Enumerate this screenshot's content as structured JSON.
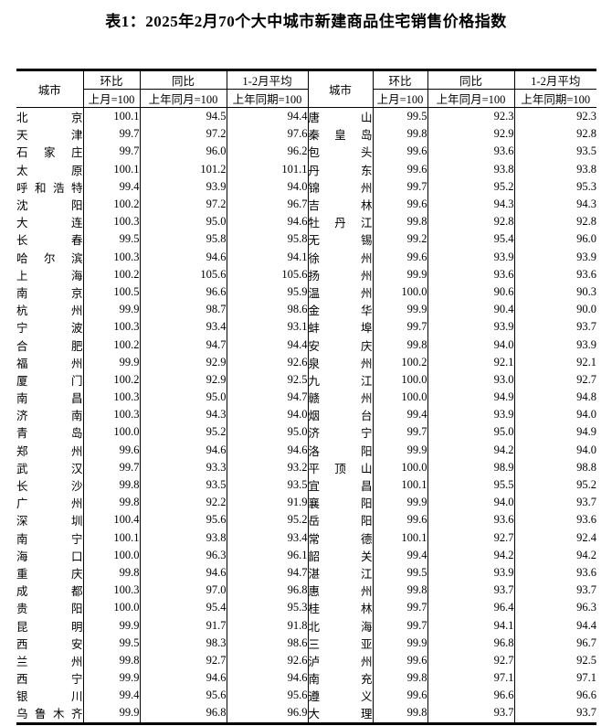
{
  "title": "表1：2025年2月70个大中城市新建商品住宅销售价格指数",
  "table": {
    "header": {
      "city": "城市",
      "mom": "环比",
      "mom_base": "上月=100",
      "yoy": "同比",
      "yoy_base": "上年同月=100",
      "avg": "1-2月平均",
      "avg_base": "上年同期=100"
    },
    "left_rows": [
      {
        "city": "北京",
        "mom": "100.1",
        "yoy": "94.5",
        "avg": "94.4"
      },
      {
        "city": "天津",
        "mom": "99.7",
        "yoy": "97.2",
        "avg": "97.6"
      },
      {
        "city": "石家庄",
        "mom": "99.7",
        "yoy": "96.0",
        "avg": "96.2"
      },
      {
        "city": "太原",
        "mom": "100.1",
        "yoy": "101.2",
        "avg": "101.1"
      },
      {
        "city": "呼和浩特",
        "mom": "99.4",
        "yoy": "93.9",
        "avg": "94.0"
      },
      {
        "city": "沈阳",
        "mom": "100.2",
        "yoy": "97.2",
        "avg": "96.7"
      },
      {
        "city": "大连",
        "mom": "100.3",
        "yoy": "95.0",
        "avg": "94.6"
      },
      {
        "city": "长春",
        "mom": "99.5",
        "yoy": "95.8",
        "avg": "95.8"
      },
      {
        "city": "哈尔滨",
        "mom": "100.3",
        "yoy": "94.6",
        "avg": "94.1"
      },
      {
        "city": "上海",
        "mom": "100.2",
        "yoy": "105.6",
        "avg": "105.6"
      },
      {
        "city": "南京",
        "mom": "100.5",
        "yoy": "96.6",
        "avg": "95.9"
      },
      {
        "city": "杭州",
        "mom": "99.9",
        "yoy": "98.7",
        "avg": "98.6"
      },
      {
        "city": "宁波",
        "mom": "100.3",
        "yoy": "93.4",
        "avg": "93.1"
      },
      {
        "city": "合肥",
        "mom": "100.2",
        "yoy": "94.7",
        "avg": "94.4"
      },
      {
        "city": "福州",
        "mom": "99.9",
        "yoy": "92.9",
        "avg": "92.6"
      },
      {
        "city": "厦门",
        "mom": "100.2",
        "yoy": "92.9",
        "avg": "92.5"
      },
      {
        "city": "南昌",
        "mom": "100.3",
        "yoy": "95.0",
        "avg": "94.7"
      },
      {
        "city": "济南",
        "mom": "100.3",
        "yoy": "94.3",
        "avg": "94.0"
      },
      {
        "city": "青岛",
        "mom": "100.0",
        "yoy": "95.2",
        "avg": "95.0"
      },
      {
        "city": "郑州",
        "mom": "99.6",
        "yoy": "94.6",
        "avg": "94.6"
      },
      {
        "city": "武汉",
        "mom": "99.7",
        "yoy": "93.3",
        "avg": "93.2"
      },
      {
        "city": "长沙",
        "mom": "99.8",
        "yoy": "93.5",
        "avg": "93.5"
      },
      {
        "city": "广州",
        "mom": "99.8",
        "yoy": "92.2",
        "avg": "91.9"
      },
      {
        "city": "深圳",
        "mom": "100.4",
        "yoy": "95.6",
        "avg": "95.2"
      },
      {
        "city": "南宁",
        "mom": "100.1",
        "yoy": "93.8",
        "avg": "93.4"
      },
      {
        "city": "海口",
        "mom": "100.0",
        "yoy": "96.3",
        "avg": "96.1"
      },
      {
        "city": "重庆",
        "mom": "99.8",
        "yoy": "94.6",
        "avg": "94.7"
      },
      {
        "city": "成都",
        "mom": "100.3",
        "yoy": "97.0",
        "avg": "96.8"
      },
      {
        "city": "贵阳",
        "mom": "100.0",
        "yoy": "95.4",
        "avg": "95.3"
      },
      {
        "city": "昆明",
        "mom": "99.9",
        "yoy": "91.7",
        "avg": "91.8"
      },
      {
        "city": "西安",
        "mom": "99.5",
        "yoy": "98.3",
        "avg": "98.6"
      },
      {
        "city": "兰州",
        "mom": "99.8",
        "yoy": "92.7",
        "avg": "92.6"
      },
      {
        "city": "西宁",
        "mom": "99.9",
        "yoy": "94.6",
        "avg": "94.6"
      },
      {
        "city": "银川",
        "mom": "99.4",
        "yoy": "95.6",
        "avg": "95.6"
      },
      {
        "city": "乌鲁木齐",
        "mom": "99.9",
        "yoy": "96.8",
        "avg": "96.9"
      }
    ],
    "right_rows": [
      {
        "city": "唐山",
        "mom": "99.5",
        "yoy": "92.3",
        "avg": "92.3"
      },
      {
        "city": "秦皇岛",
        "mom": "99.8",
        "yoy": "92.9",
        "avg": "92.8"
      },
      {
        "city": "包头",
        "mom": "99.6",
        "yoy": "93.6",
        "avg": "93.5"
      },
      {
        "city": "丹东",
        "mom": "99.6",
        "yoy": "93.8",
        "avg": "93.8"
      },
      {
        "city": "锦州",
        "mom": "99.7",
        "yoy": "95.2",
        "avg": "95.3"
      },
      {
        "city": "吉林",
        "mom": "99.6",
        "yoy": "94.3",
        "avg": "94.3"
      },
      {
        "city": "牡丹江",
        "mom": "99.8",
        "yoy": "92.8",
        "avg": "92.8"
      },
      {
        "city": "无锡",
        "mom": "99.2",
        "yoy": "95.4",
        "avg": "96.0"
      },
      {
        "city": "徐州",
        "mom": "99.6",
        "yoy": "93.9",
        "avg": "93.9"
      },
      {
        "city": "扬州",
        "mom": "99.9",
        "yoy": "93.6",
        "avg": "93.6"
      },
      {
        "city": "温州",
        "mom": "100.0",
        "yoy": "90.6",
        "avg": "90.3"
      },
      {
        "city": "金华",
        "mom": "99.9",
        "yoy": "90.4",
        "avg": "90.0"
      },
      {
        "city": "蚌埠",
        "mom": "99.7",
        "yoy": "93.9",
        "avg": "93.7"
      },
      {
        "city": "安庆",
        "mom": "99.8",
        "yoy": "94.0",
        "avg": "93.9"
      },
      {
        "city": "泉州",
        "mom": "100.2",
        "yoy": "92.1",
        "avg": "92.1"
      },
      {
        "city": "九江",
        "mom": "100.0",
        "yoy": "93.0",
        "avg": "92.7"
      },
      {
        "city": "赣州",
        "mom": "100.0",
        "yoy": "94.9",
        "avg": "94.8"
      },
      {
        "city": "烟台",
        "mom": "99.4",
        "yoy": "93.9",
        "avg": "94.0"
      },
      {
        "city": "济宁",
        "mom": "99.7",
        "yoy": "95.0",
        "avg": "94.9"
      },
      {
        "city": "洛阳",
        "mom": "99.9",
        "yoy": "94.2",
        "avg": "94.0"
      },
      {
        "city": "平顶山",
        "mom": "100.0",
        "yoy": "98.9",
        "avg": "98.8"
      },
      {
        "city": "宜昌",
        "mom": "100.1",
        "yoy": "95.5",
        "avg": "95.2"
      },
      {
        "city": "襄阳",
        "mom": "99.9",
        "yoy": "94.0",
        "avg": "93.7"
      },
      {
        "city": "岳阳",
        "mom": "99.6",
        "yoy": "93.6",
        "avg": "93.6"
      },
      {
        "city": "常德",
        "mom": "100.1",
        "yoy": "92.7",
        "avg": "92.4"
      },
      {
        "city": "韶关",
        "mom": "99.4",
        "yoy": "94.2",
        "avg": "94.2"
      },
      {
        "city": "湛江",
        "mom": "99.5",
        "yoy": "93.9",
        "avg": "93.6"
      },
      {
        "city": "惠州",
        "mom": "99.8",
        "yoy": "93.7",
        "avg": "93.7"
      },
      {
        "city": "桂林",
        "mom": "99.7",
        "yoy": "96.4",
        "avg": "96.3"
      },
      {
        "city": "北海",
        "mom": "99.7",
        "yoy": "94.1",
        "avg": "94.4"
      },
      {
        "city": "三亚",
        "mom": "99.9",
        "yoy": "96.8",
        "avg": "96.7"
      },
      {
        "city": "泸州",
        "mom": "99.6",
        "yoy": "92.7",
        "avg": "92.5"
      },
      {
        "city": "南充",
        "mom": "99.8",
        "yoy": "97.1",
        "avg": "97.1"
      },
      {
        "city": "遵义",
        "mom": "99.6",
        "yoy": "96.6",
        "avg": "96.6"
      },
      {
        "city": "大理",
        "mom": "99.8",
        "yoy": "93.7",
        "avg": "93.7"
      }
    ]
  }
}
